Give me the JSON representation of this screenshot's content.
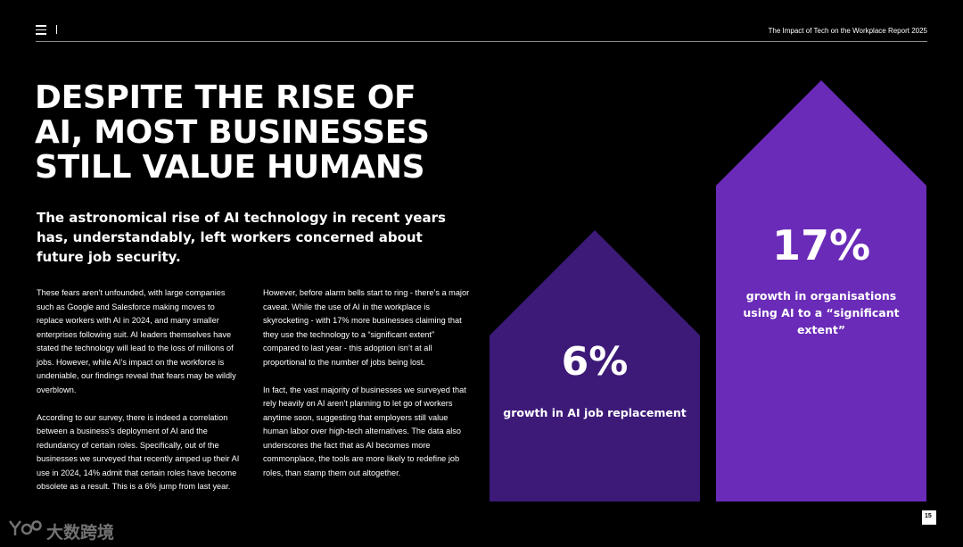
{
  "header": {
    "report_title": "The Impact of Tech on the Workplace Report 2025",
    "menu_icon": "hamburger-menu-icon"
  },
  "headline": {
    "lines": [
      "DESPITE THE RISE OF",
      "AI, MOST BUSINESSES",
      "STILL VALUE HUMANS"
    ]
  },
  "lead": "The astronomical rise of AI technology in recent years has, understandably, left workers concerned about future job security.",
  "column1": {
    "p1": "These fears aren’t unfounded, with large companies such as Google and Salesforce making moves to replace workers with AI in 2024, and many smaller enterprises following suit. AI leaders themselves have stated the technology will lead to the loss of millions of jobs. However, while AI’s impact on the workforce is undeniable, our findings reveal that fears may be wildly overblown.",
    "p2": "According to our survey, there is indeed a correlation between a business’s deployment of AI and the redundancy of certain roles. Specifically, out of the businesses we surveyed that recently amped up their AI use in 2024, 14% admit that certain roles have become obsolete as a result. This is a 6% jump from last year."
  },
  "column2": {
    "p1": "However, before alarm bells start to ring - there’s a major caveat. While the use of AI in the workplace is skyrocketing - with 17% more businesses claiming that they use the technology to a “significant extent” compared to last year - this adoption isn’t at all proportional to the number of jobs being lost.",
    "p2": "In fact, the vast majority of businesses we surveyed that rely heavily on AI aren’t planning to let go of workers anytime soon, suggesting that employers still value human labor over high-tech alternatives. The data also underscores the fact that as AI becomes more commonplace, the tools are more likely to redefine job roles, than stamp them out altogether."
  },
  "stats": {
    "small": {
      "value": "6%",
      "caption": "growth in AI job replacement",
      "color": "#3d1a78"
    },
    "large": {
      "value": "17%",
      "caption": "growth in organisations using AI to a “significant extent”",
      "color": "#6a2bb8"
    }
  },
  "page_number": "15",
  "watermark": {
    "text": "大数跨境",
    "icon": "ybb-logo-icon"
  }
}
